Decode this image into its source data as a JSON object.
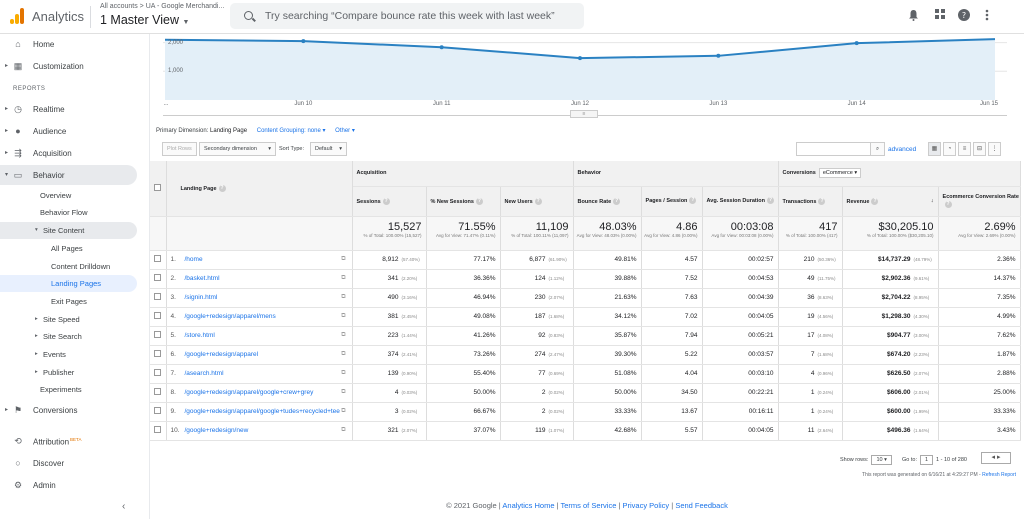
{
  "topbar": {
    "app_title": "Analytics",
    "breadcrumb": "All accounts > UA - Google Merchandi...",
    "view_name": "1 Master View",
    "search_placeholder": "Try searching “Compare bounce rate this week with last week”",
    "icons": [
      "bell-icon",
      "apps-icon",
      "help-icon",
      "more-vert-icon"
    ]
  },
  "sidebar": {
    "home": "Home",
    "customization": "Customization",
    "reports_header": "REPORTS",
    "realtime": "Realtime",
    "audience": "Audience",
    "acquisition": "Acquisition",
    "behavior": "Behavior",
    "behavior_items": {
      "overview": "Overview",
      "behavior_flow": "Behavior Flow",
      "site_content": "Site Content",
      "all_pages": "All Pages",
      "content_drilldown": "Content Drilldown",
      "landing_pages": "Landing Pages",
      "exit_pages": "Exit Pages",
      "site_speed": "Site Speed",
      "site_search": "Site Search",
      "events": "Events",
      "publisher": "Publisher",
      "experiments": "Experiments"
    },
    "conversions": "Conversions",
    "attribution": "Attribution",
    "attribution_badge": "BETA",
    "discover": "Discover",
    "admin": "Admin"
  },
  "chart_data": {
    "type": "area",
    "x": [
      "...",
      "Jun 10",
      "Jun 11",
      "Jun 12",
      "Jun 13",
      "Jun 14",
      "Jun 15"
    ],
    "series": [
      {
        "values": [
          2100,
          2050,
          1840,
          1460,
          1540,
          1980,
          2120
        ]
      }
    ],
    "yticks": [
      "2,000",
      "1,000"
    ],
    "ylim": [
      0,
      2300
    ],
    "color": "#1a73e8"
  },
  "controls": {
    "primary_dimension_label": "Primary Dimension:",
    "primary_dimension_value": "Landing Page",
    "content_grouping": "Content Grouping: none",
    "other": "Other",
    "plot_rows": "Plot Rows",
    "secondary_dimension": "Secondary dimension",
    "sort_type_label": "Sort Type:",
    "sort_type_value": "Default",
    "advanced": "advanced"
  },
  "table": {
    "group_headers": {
      "acquisition": "Acquisition",
      "behavior": "Behavior",
      "conversions": "Conversions",
      "conversions_select": "eCommerce"
    },
    "columns": {
      "landing_page": "Landing Page",
      "sessions": "Sessions",
      "new_sessions": "% New Sessions",
      "new_users": "New Users",
      "bounce_rate": "Bounce Rate",
      "pages_session": "Pages / Session",
      "avg_duration": "Avg. Session Duration",
      "transactions": "Transactions",
      "revenue": "Revenue",
      "conv_rate": "Ecommerce Conversion Rate"
    },
    "totals": {
      "sessions": "15,527",
      "sessions_sub": "% of Total: 100.00% (15,527)",
      "new_sessions": "71.55%",
      "new_sessions_sub": "Avg for View: 71.47% (0.11%)",
      "new_users": "11,109",
      "new_users_sub": "% of Total: 100.11% (11,097)",
      "bounce_rate": "48.03%",
      "bounce_rate_sub": "Avg for View: 48.03% (0.00%)",
      "pages_session": "4.86",
      "pages_session_sub": "Avg for View: 4.86 (0.00%)",
      "avg_duration": "00:03:08",
      "avg_duration_sub": "Avg for View: 00:03:08 (0.00%)",
      "transactions": "417",
      "transactions_sub": "% of Total: 100.00% (417)",
      "revenue": "$30,205.10",
      "revenue_sub": "% of Total: 100.00% ($30,205.10)",
      "conv_rate": "2.69%",
      "conv_rate_sub": "Avg for View: 2.69% (0.00%)"
    },
    "rows": [
      {
        "n": "1.",
        "page": "/home",
        "s": "8,912",
        "sp": "(57.40%)",
        "ns": "77.17%",
        "nu": "6,877",
        "nup": "(61.90%)",
        "br": "49.81%",
        "ps": "4.57",
        "ad": "00:02:57",
        "t": "210",
        "tp": "(50.36%)",
        "r": "$14,737.29",
        "rp": "(48.79%)",
        "cr": "2.36%"
      },
      {
        "n": "2.",
        "page": "/basket.html",
        "s": "341",
        "sp": "(2.20%)",
        "ns": "36.36%",
        "nu": "124",
        "nup": "(1.12%)",
        "br": "39.88%",
        "ps": "7.52",
        "ad": "00:04:53",
        "t": "49",
        "tp": "(11.75%)",
        "r": "$2,902.36",
        "rp": "(9.61%)",
        "cr": "14.37%"
      },
      {
        "n": "3.",
        "page": "/signin.html",
        "s": "490",
        "sp": "(3.16%)",
        "ns": "46.94%",
        "nu": "230",
        "nup": "(2.07%)",
        "br": "21.63%",
        "ps": "7.63",
        "ad": "00:04:39",
        "t": "36",
        "tp": "(8.63%)",
        "r": "$2,704.22",
        "rp": "(8.95%)",
        "cr": "7.35%"
      },
      {
        "n": "4.",
        "page": "/google+redesign/apparel/mens",
        "s": "381",
        "sp": "(2.45%)",
        "ns": "49.08%",
        "nu": "187",
        "nup": "(1.68%)",
        "br": "34.12%",
        "ps": "7.02",
        "ad": "00:04:05",
        "t": "19",
        "tp": "(4.56%)",
        "r": "$1,298.30",
        "rp": "(4.30%)",
        "cr": "4.99%"
      },
      {
        "n": "5.",
        "page": "/store.html",
        "s": "223",
        "sp": "(1.44%)",
        "ns": "41.26%",
        "nu": "92",
        "nup": "(0.83%)",
        "br": "35.87%",
        "ps": "7.94",
        "ad": "00:05:21",
        "t": "17",
        "tp": "(4.08%)",
        "r": "$904.77",
        "rp": "(3.00%)",
        "cr": "7.62%"
      },
      {
        "n": "6.",
        "page": "/google+redesign/apparel",
        "s": "374",
        "sp": "(2.41%)",
        "ns": "73.26%",
        "nu": "274",
        "nup": "(2.47%)",
        "br": "39.30%",
        "ps": "5.22",
        "ad": "00:03:57",
        "t": "7",
        "tp": "(1.68%)",
        "r": "$674.20",
        "rp": "(2.23%)",
        "cr": "1.87%"
      },
      {
        "n": "7.",
        "page": "/asearch.html",
        "s": "139",
        "sp": "(0.90%)",
        "ns": "55.40%",
        "nu": "77",
        "nup": "(0.69%)",
        "br": "51.08%",
        "ps": "4.04",
        "ad": "00:03:10",
        "t": "4",
        "tp": "(0.96%)",
        "r": "$626.50",
        "rp": "(2.07%)",
        "cr": "2.88%"
      },
      {
        "n": "8.",
        "page": "/google+redesign/apparel/google+crew+grey",
        "s": "4",
        "sp": "(0.03%)",
        "ns": "50.00%",
        "nu": "2",
        "nup": "(0.02%)",
        "br": "50.00%",
        "ps": "34.50",
        "ad": "00:22:21",
        "t": "1",
        "tp": "(0.24%)",
        "r": "$606.00",
        "rp": "(2.01%)",
        "cr": "25.00%"
      },
      {
        "n": "9.",
        "page": "/google+redesign/apparel/google+tudes+recycled+tee",
        "s": "3",
        "sp": "(0.02%)",
        "ns": "66.67%",
        "nu": "2",
        "nup": "(0.02%)",
        "br": "33.33%",
        "ps": "13.67",
        "ad": "00:16:11",
        "t": "1",
        "tp": "(0.24%)",
        "r": "$600.00",
        "rp": "(1.99%)",
        "cr": "33.33%"
      },
      {
        "n": "10.",
        "page": "/google+redesign/new",
        "s": "321",
        "sp": "(2.07%)",
        "ns": "37.07%",
        "nu": "119",
        "nup": "(1.07%)",
        "br": "42.68%",
        "ps": "5.57",
        "ad": "00:04:05",
        "t": "11",
        "tp": "(2.64%)",
        "r": "$496.36",
        "rp": "(1.64%)",
        "cr": "3.43%"
      }
    ]
  },
  "footer": {
    "show_rows_label": "Show rows:",
    "show_rows_value": "10",
    "goto_label": "Go to:",
    "goto_value": "1",
    "range": "1 - 10 of 280",
    "generated": "This report was generated on 6/16/21 at 4:29:27 PM -",
    "refresh": "Refresh Report",
    "copyright": "© 2021 Google",
    "links": [
      "Analytics Home",
      "Terms of Service",
      "Privacy Policy",
      "Send Feedback"
    ]
  }
}
